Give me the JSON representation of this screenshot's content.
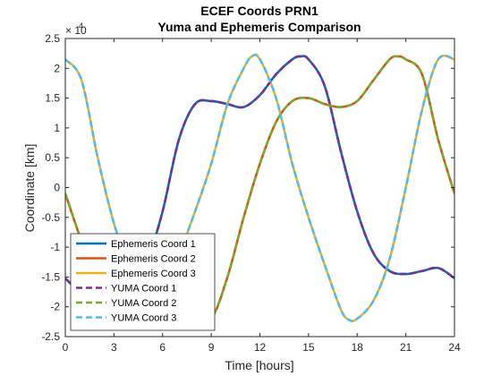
{
  "chart_data": {
    "type": "line",
    "title": "ECEF Coords PRN1",
    "subtitle": "Yuma and Ephemeris Comparison",
    "xlabel": "Time [hours]",
    "ylabel": "Coordinate [km]",
    "y_exponent_label": "× 10",
    "y_exponent_power": "4",
    "xlim": [
      0,
      24
    ],
    "ylim": [
      -2.5,
      2.5
    ],
    "xticks": [
      "0",
      "3",
      "6",
      "9",
      "12",
      "15",
      "18",
      "21",
      "24"
    ],
    "yticks": [
      "-2.5",
      "-2",
      "-1.5",
      "-1",
      "-0.5",
      "0",
      "0.5",
      "1",
      "1.5",
      "2",
      "2.5"
    ],
    "grid": false,
    "legend_position": "bottom-left",
    "y_units_note": "values in units of 10^4 km",
    "series": [
      {
        "name": "Ephemeris Coord 1",
        "color": "#0072BD",
        "style": "solid",
        "points": [
          [
            0,
            -1.52
          ],
          [
            1,
            -1.8
          ],
          [
            2,
            -2.05
          ],
          [
            3,
            -2.2
          ],
          [
            4,
            -2.05
          ],
          [
            5,
            -1.3
          ],
          [
            6,
            -0.4
          ],
          [
            7,
            0.8
          ],
          [
            8,
            1.4
          ],
          [
            9,
            1.45
          ],
          [
            10,
            1.4
          ],
          [
            11,
            1.35
          ],
          [
            12,
            1.55
          ],
          [
            13,
            1.9
          ],
          [
            14,
            2.15
          ],
          [
            14.5,
            2.2
          ],
          [
            15,
            2.15
          ],
          [
            16,
            1.7
          ],
          [
            17,
            0.6
          ],
          [
            18,
            -0.4
          ],
          [
            19,
            -1.1
          ],
          [
            20,
            -1.4
          ],
          [
            21,
            -1.45
          ],
          [
            22,
            -1.4
          ],
          [
            23,
            -1.35
          ],
          [
            24,
            -1.52
          ]
        ]
      },
      {
        "name": "Ephemeris Coord 2",
        "color": "#D95319",
        "style": "solid",
        "points": [
          [
            0,
            -0.1
          ],
          [
            1,
            -0.9
          ],
          [
            2,
            -1.6
          ],
          [
            3,
            -2.05
          ],
          [
            4,
            -2.2
          ],
          [
            5,
            -2.2
          ],
          [
            6,
            -2.15
          ],
          [
            7,
            -2.05
          ],
          [
            8,
            -2.15
          ],
          [
            9,
            -2.2
          ],
          [
            10,
            -1.5
          ],
          [
            11,
            -0.5
          ],
          [
            12,
            0.4
          ],
          [
            13,
            1.1
          ],
          [
            14,
            1.45
          ],
          [
            15,
            1.5
          ],
          [
            16,
            1.4
          ],
          [
            17,
            1.35
          ],
          [
            18,
            1.45
          ],
          [
            19,
            1.8
          ],
          [
            20,
            2.15
          ],
          [
            20.5,
            2.2
          ],
          [
            21,
            2.15
          ],
          [
            22,
            1.9
          ],
          [
            23,
            0.8
          ],
          [
            24,
            -0.1
          ]
        ]
      },
      {
        "name": "Ephemeris Coord 3",
        "color": "#EDB120",
        "style": "solid",
        "points": [
          [
            0,
            2.15
          ],
          [
            1,
            1.8
          ],
          [
            2,
            0.5
          ],
          [
            3,
            -0.6
          ],
          [
            4,
            -1.35
          ],
          [
            5,
            -1.45
          ],
          [
            6,
            -1.4
          ],
          [
            7,
            -1.1
          ],
          [
            8,
            -0.4
          ],
          [
            9,
            0.4
          ],
          [
            10,
            1.4
          ],
          [
            11,
            2.0
          ],
          [
            11.5,
            2.2
          ],
          [
            12,
            2.15
          ],
          [
            13,
            1.5
          ],
          [
            14,
            0.4
          ],
          [
            15,
            -0.5
          ],
          [
            16,
            -1.3
          ],
          [
            17,
            -2.05
          ],
          [
            17.5,
            -2.22
          ],
          [
            18,
            -2.2
          ],
          [
            19,
            -1.9
          ],
          [
            20,
            -1.2
          ],
          [
            21,
            0.0
          ],
          [
            22,
            1.3
          ],
          [
            23,
            2.15
          ],
          [
            24,
            2.15
          ]
        ]
      },
      {
        "name": "YUMA Coord 1",
        "color": "#7E2F8E",
        "style": "dashed",
        "points": [
          [
            0,
            -1.52
          ],
          [
            1,
            -1.8
          ],
          [
            2,
            -2.05
          ],
          [
            3,
            -2.2
          ],
          [
            4,
            -2.05
          ],
          [
            5,
            -1.3
          ],
          [
            6,
            -0.4
          ],
          [
            7,
            0.8
          ],
          [
            8,
            1.4
          ],
          [
            9,
            1.45
          ],
          [
            10,
            1.4
          ],
          [
            11,
            1.35
          ],
          [
            12,
            1.55
          ],
          [
            13,
            1.9
          ],
          [
            14,
            2.15
          ],
          [
            14.5,
            2.2
          ],
          [
            15,
            2.15
          ],
          [
            16,
            1.7
          ],
          [
            17,
            0.6
          ],
          [
            18,
            -0.4
          ],
          [
            19,
            -1.1
          ],
          [
            20,
            -1.4
          ],
          [
            21,
            -1.45
          ],
          [
            22,
            -1.4
          ],
          [
            23,
            -1.35
          ],
          [
            24,
            -1.52
          ]
        ]
      },
      {
        "name": "YUMA Coord 2",
        "color": "#77AC30",
        "style": "dashed",
        "points": [
          [
            0,
            -0.1
          ],
          [
            1,
            -0.9
          ],
          [
            2,
            -1.6
          ],
          [
            3,
            -2.05
          ],
          [
            4,
            -2.2
          ],
          [
            5,
            -2.2
          ],
          [
            6,
            -2.15
          ],
          [
            7,
            -2.05
          ],
          [
            8,
            -2.15
          ],
          [
            9,
            -2.2
          ],
          [
            10,
            -1.5
          ],
          [
            11,
            -0.5
          ],
          [
            12,
            0.4
          ],
          [
            13,
            1.1
          ],
          [
            14,
            1.45
          ],
          [
            15,
            1.5
          ],
          [
            16,
            1.4
          ],
          [
            17,
            1.35
          ],
          [
            18,
            1.45
          ],
          [
            19,
            1.8
          ],
          [
            20,
            2.15
          ],
          [
            20.5,
            2.2
          ],
          [
            21,
            2.15
          ],
          [
            22,
            1.9
          ],
          [
            23,
            0.8
          ],
          [
            24,
            -0.1
          ]
        ]
      },
      {
        "name": "YUMA Coord 3",
        "color": "#4DBEEE",
        "style": "dashed",
        "points": [
          [
            0,
            2.15
          ],
          [
            1,
            1.8
          ],
          [
            2,
            0.5
          ],
          [
            3,
            -0.6
          ],
          [
            4,
            -1.35
          ],
          [
            5,
            -1.45
          ],
          [
            6,
            -1.4
          ],
          [
            7,
            -1.1
          ],
          [
            8,
            -0.4
          ],
          [
            9,
            0.4
          ],
          [
            10,
            1.4
          ],
          [
            11,
            2.0
          ],
          [
            11.5,
            2.2
          ],
          [
            12,
            2.15
          ],
          [
            13,
            1.5
          ],
          [
            14,
            0.4
          ],
          [
            15,
            -0.5
          ],
          [
            16,
            -1.3
          ],
          [
            17,
            -2.05
          ],
          [
            17.5,
            -2.22
          ],
          [
            18,
            -2.2
          ],
          [
            19,
            -1.9
          ],
          [
            20,
            -1.2
          ],
          [
            21,
            0.0
          ],
          [
            22,
            1.3
          ],
          [
            23,
            2.15
          ],
          [
            24,
            2.15
          ]
        ]
      }
    ]
  }
}
